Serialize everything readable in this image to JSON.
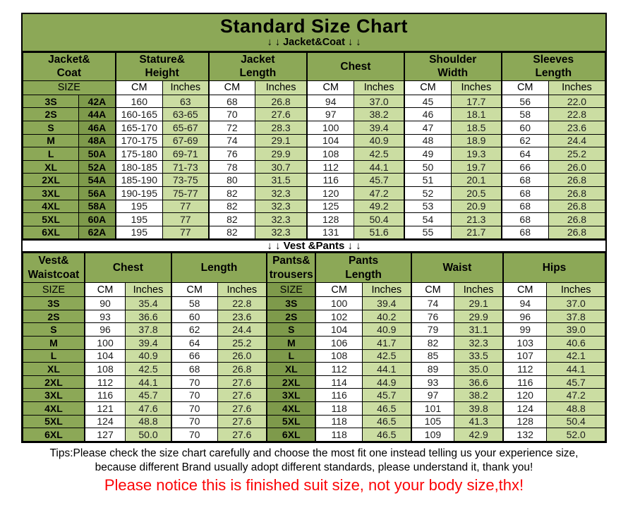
{
  "title": "Standard Size Chart",
  "section_labels": {
    "jacket": "↓ ↓  Jacket&Coat ↓ ↓",
    "vest": "↓ ↓  Vest &Pants ↓ ↓"
  },
  "chart_data": [
    {
      "type": "table",
      "name": "Jacket&Coat size table",
      "header_groups": [
        {
          "line1": "Jacket&",
          "line2": "Coat"
        },
        {
          "line1": "Stature&",
          "line2": "Height"
        },
        {
          "line1": "Jacket",
          "line2": "Length"
        },
        {
          "line1": "Chest",
          "line2": ""
        },
        {
          "line1": "Shoulder",
          "line2": "Width"
        },
        {
          "line1": "Sleeves",
          "line2": "Length"
        }
      ],
      "unit_row": [
        "SIZE",
        "CM",
        "Inches",
        "CM",
        "Inches",
        "CM",
        "Inches",
        "CM",
        "Inches",
        "CM",
        "Inches"
      ],
      "rows": [
        [
          "3S",
          "42A",
          "160",
          "63",
          "68",
          "26.8",
          "94",
          "37.0",
          "45",
          "17.7",
          "56",
          "22.0"
        ],
        [
          "2S",
          "44A",
          "160-165",
          "63-65",
          "70",
          "27.6",
          "97",
          "38.2",
          "46",
          "18.1",
          "58",
          "22.8"
        ],
        [
          "S",
          "46A",
          "165-170",
          "65-67",
          "72",
          "28.3",
          "100",
          "39.4",
          "47",
          "18.5",
          "60",
          "23.6"
        ],
        [
          "M",
          "48A",
          "170-175",
          "67-69",
          "74",
          "29.1",
          "104",
          "40.9",
          "48",
          "18.9",
          "62",
          "24.4"
        ],
        [
          "L",
          "50A",
          "175-180",
          "69-71",
          "76",
          "29.9",
          "108",
          "42.5",
          "49",
          "19.3",
          "64",
          "25.2"
        ],
        [
          "XL",
          "52A",
          "180-185",
          "71-73",
          "78",
          "30.7",
          "112",
          "44.1",
          "50",
          "19.7",
          "66",
          "26.0"
        ],
        [
          "2XL",
          "54A",
          "185-190",
          "73-75",
          "80",
          "31.5",
          "116",
          "45.7",
          "51",
          "20.1",
          "68",
          "26.8"
        ],
        [
          "3XL",
          "56A",
          "190-195",
          "75-77",
          "82",
          "32.3",
          "120",
          "47.2",
          "52",
          "20.5",
          "68",
          "26.8"
        ],
        [
          "4XL",
          "58A",
          "195",
          "77",
          "82",
          "32.3",
          "125",
          "49.2",
          "53",
          "20.9",
          "68",
          "26.8"
        ],
        [
          "5XL",
          "60A",
          "195",
          "77",
          "82",
          "32.3",
          "128",
          "50.4",
          "54",
          "21.3",
          "68",
          "26.8"
        ],
        [
          "6XL",
          "62A",
          "195",
          "77",
          "82",
          "32.3",
          "131",
          "51.6",
          "55",
          "21.7",
          "68",
          "26.8"
        ]
      ]
    },
    {
      "type": "table",
      "name": "Vest&Pants size table",
      "header_groups": [
        {
          "line1": "Vest&",
          "line2": "Waistcoat"
        },
        {
          "line1": "Chest",
          "line2": ""
        },
        {
          "line1": "Length",
          "line2": ""
        },
        {
          "line1": "Pants&",
          "line2": "trousers"
        },
        {
          "line1": "Pants",
          "line2": "Length"
        },
        {
          "line1": "Waist",
          "line2": ""
        },
        {
          "line1": "Hips",
          "line2": ""
        }
      ],
      "unit_row": [
        "SIZE",
        "CM",
        "Inches",
        "CM",
        "Inches",
        "SIZE",
        "CM",
        "Inches",
        "CM",
        "Inches",
        "CM",
        "Inches"
      ],
      "rows": [
        [
          "3S",
          "90",
          "35.4",
          "58",
          "22.8",
          "3S",
          "100",
          "39.4",
          "74",
          "29.1",
          "94",
          "37.0"
        ],
        [
          "2S",
          "93",
          "36.6",
          "60",
          "23.6",
          "2S",
          "102",
          "40.2",
          "76",
          "29.9",
          "96",
          "37.8"
        ],
        [
          "S",
          "96",
          "37.8",
          "62",
          "24.4",
          "S",
          "104",
          "40.9",
          "79",
          "31.1",
          "99",
          "39.0"
        ],
        [
          "M",
          "100",
          "39.4",
          "64",
          "25.2",
          "M",
          "106",
          "41.7",
          "82",
          "32.3",
          "103",
          "40.6"
        ],
        [
          "L",
          "104",
          "40.9",
          "66",
          "26.0",
          "L",
          "108",
          "42.5",
          "85",
          "33.5",
          "107",
          "42.1"
        ],
        [
          "XL",
          "108",
          "42.5",
          "68",
          "26.8",
          "XL",
          "112",
          "44.1",
          "89",
          "35.0",
          "112",
          "44.1"
        ],
        [
          "2XL",
          "112",
          "44.1",
          "70",
          "27.6",
          "2XL",
          "114",
          "44.9",
          "93",
          "36.6",
          "116",
          "45.7"
        ],
        [
          "3XL",
          "116",
          "45.7",
          "70",
          "27.6",
          "3XL",
          "116",
          "45.7",
          "97",
          "38.2",
          "120",
          "47.2"
        ],
        [
          "4XL",
          "121",
          "47.6",
          "70",
          "27.6",
          "4XL",
          "118",
          "46.5",
          "101",
          "39.8",
          "124",
          "48.8"
        ],
        [
          "5XL",
          "124",
          "48.8",
          "70",
          "27.6",
          "5XL",
          "118",
          "46.5",
          "105",
          "41.3",
          "128",
          "50.4"
        ],
        [
          "6XL",
          "127",
          "50.0",
          "70",
          "27.6",
          "6XL",
          "118",
          "46.5",
          "109",
          "42.9",
          "132",
          "52.0"
        ]
      ]
    }
  ],
  "footer": {
    "tips_line1": "Tips:Please check the size chart carefully and choose the most fit one instead telling us your experience size,",
    "tips_line2": "because different Brand usually adopt different standards, please understand it, thank you!",
    "notice": "Please notice this is finished suit size, not your body size,thx!"
  },
  "colors": {
    "header_green": "#8CA857",
    "dark_green": "#7E9A4B",
    "light_green": "#CBDDA2",
    "notice_red": "#FB0406",
    "border_black": "#000000"
  }
}
